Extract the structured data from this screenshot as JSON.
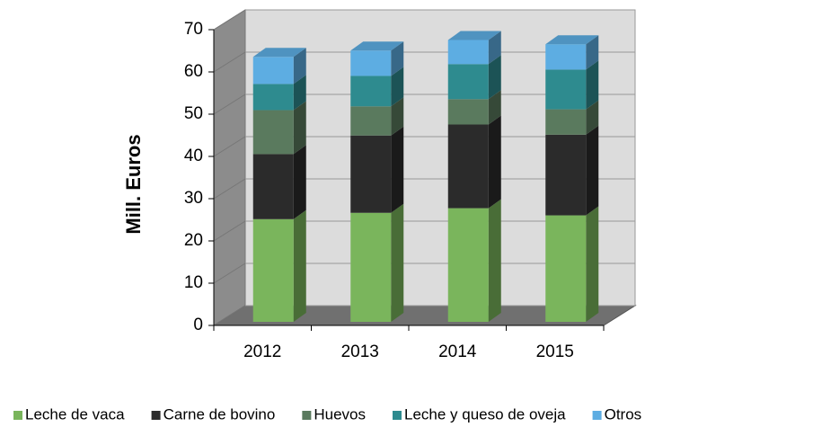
{
  "chart_data": {
    "type": "bar",
    "stacked": true,
    "y_label": "Mill. Euros",
    "categories": [
      "2012",
      "2013",
      "2014",
      "2015"
    ],
    "series": [
      {
        "name": "Leche de vaca",
        "color": "#7ab55c",
        "values": [
          24.3,
          25.8,
          26.9,
          25.2
        ]
      },
      {
        "name": "Carne de bovino",
        "color": "#2b2b2b",
        "values": [
          15.4,
          18.3,
          19.8,
          19.1
        ]
      },
      {
        "name": "Huevos",
        "color": "#5a7a5e",
        "values": [
          10.4,
          6.9,
          6.0,
          6.0
        ]
      },
      {
        "name": "Leche y queso de oveja",
        "color": "#2e8b8f",
        "values": [
          6.2,
          7.2,
          8.3,
          9.4
        ]
      },
      {
        "name": "Otros",
        "color": "#5dade2",
        "values": [
          6.4,
          6.0,
          5.7,
          6.0
        ]
      }
    ],
    "ylim": [
      0,
      70
    ],
    "yticks": [
      0,
      10,
      20,
      30,
      40,
      50,
      60,
      70
    ],
    "grid": true,
    "legend": "bottom"
  }
}
